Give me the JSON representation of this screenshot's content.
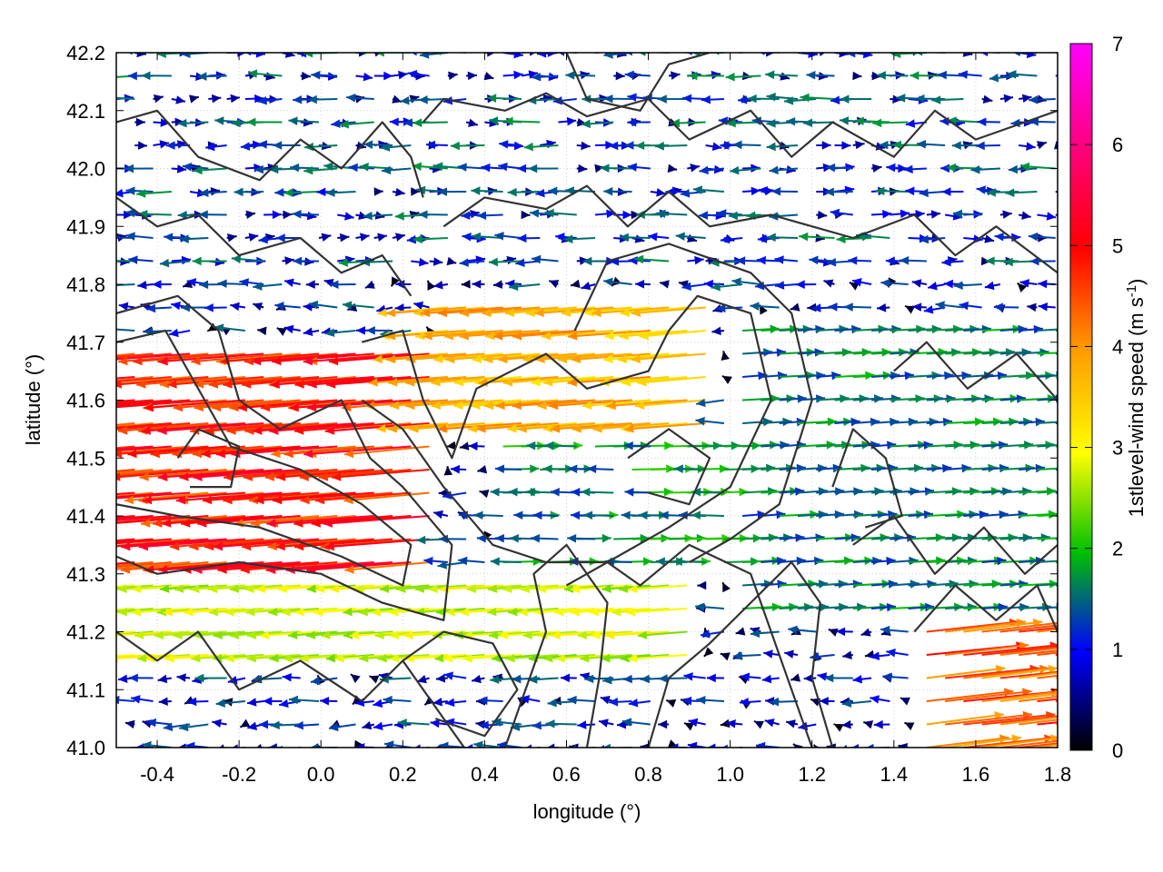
{
  "chart_data": {
    "type": "vector-field",
    "xlabel": "longitude (°)",
    "ylabel": "latitude (°)",
    "xlim": [
      -0.5,
      1.8
    ],
    "ylim": [
      41.0,
      42.2
    ],
    "x_ticks": [
      "-0.4",
      "-0.2",
      "0.0",
      "0.2",
      "0.4",
      "0.6",
      "0.8",
      "1.0",
      "1.2",
      "1.4",
      "1.6",
      "1.8"
    ],
    "y_ticks": [
      "41.0",
      "41.1",
      "41.2",
      "41.3",
      "41.4",
      "41.5",
      "41.6",
      "41.7",
      "41.8",
      "41.9",
      "42.0",
      "42.1",
      "42.2"
    ],
    "grid": true,
    "colorbar": {
      "label_main": "1stlevel-wind speed (m s",
      "label_sup": "-1",
      "label_end": ")",
      "range": [
        0,
        7
      ],
      "ticks": [
        "0",
        "1",
        "2",
        "3",
        "4",
        "5",
        "6",
        "7"
      ],
      "colormap": [
        "#000000",
        "#0000ff",
        "#00c000",
        "#ffff00",
        "#ff9900",
        "#ff0000",
        "#ff00ff"
      ]
    },
    "wind_regions": [
      {
        "region": "west, lat 41.35-41.65",
        "direction": "easterly (westward)",
        "speed": 5.0
      },
      {
        "region": "central, lat 41.55-41.75",
        "direction": "easterly (westward)",
        "speed": 3.5
      },
      {
        "region": "southeast corner, lat 41.0-41.2",
        "direction": "westerly (eastward)",
        "speed": 4.5
      },
      {
        "region": "east, lat 41.2-41.7",
        "direction": "westerly (eastward)",
        "speed": 1.5
      },
      {
        "region": "north, lat 41.8-42.2",
        "direction": "variable",
        "speed": 1.0
      }
    ],
    "contours": "terrain elevation contours (unlabeled)"
  }
}
